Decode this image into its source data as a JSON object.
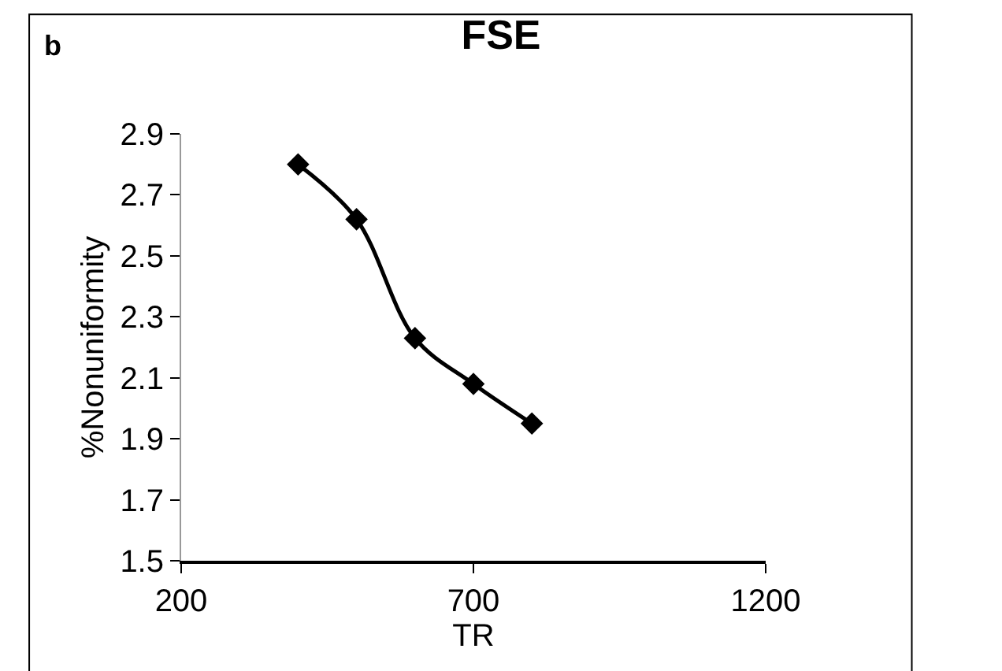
{
  "chart_data": {
    "type": "line",
    "title": "FSE",
    "xlabel": "TR",
    "ylabel": "%Nonuniformity",
    "annotations": [
      "b"
    ],
    "x": [
      400,
      500,
      600,
      700,
      800
    ],
    "series": [
      {
        "color": "#000000",
        "values": [
          2.8,
          2.62,
          2.23,
          2.08,
          1.95
        ]
      }
    ],
    "xlim": [
      200,
      1200
    ],
    "xticks": [
      200,
      700,
      1200
    ],
    "ylim": [
      1.5,
      2.9
    ],
    "yticks": [
      1.5,
      1.7,
      1.9,
      2.1,
      2.3,
      2.5,
      2.7,
      2.9
    ],
    "marker": "diamond",
    "line_style": "solid"
  }
}
